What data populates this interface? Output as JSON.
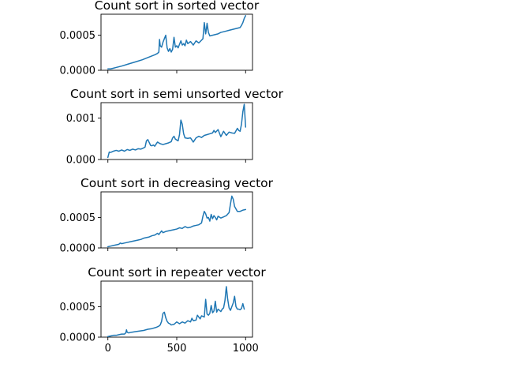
{
  "chart_data": [
    {
      "type": "line",
      "title": "Count sort in sorted vector",
      "xlim": [
        -50,
        1050
      ],
      "ylim": [
        0,
        0.0008
      ],
      "x_ticks": [
        0,
        500,
        1000
      ],
      "x_tick_labels": [
        "",
        "",
        ""
      ],
      "y_ticks": [
        0,
        0.0005
      ],
      "y_tick_labels": [
        "0.0000",
        "0.0005"
      ],
      "series": [
        {
          "color": "#1f77b4",
          "x": [
            0,
            20,
            40,
            60,
            80,
            100,
            150,
            200,
            250,
            300,
            340,
            360,
            370,
            375,
            380,
            390,
            400,
            410,
            420,
            430,
            440,
            450,
            460,
            470,
            480,
            490,
            500,
            510,
            520,
            530,
            540,
            550,
            560,
            570,
            580,
            600,
            620,
            640,
            660,
            680,
            690,
            700,
            710,
            715,
            720,
            730,
            740,
            760,
            780,
            800,
            820,
            840,
            860,
            880,
            900,
            920,
            940,
            960,
            970,
            980,
            990,
            1000
          ],
          "y": [
            2e-05,
            2e-05,
            3e-05,
            4e-05,
            5e-05,
            6e-05,
            9e-05,
            0.00012,
            0.00015,
            0.00019,
            0.00022,
            0.00024,
            0.00026,
            0.00044,
            0.00035,
            0.00033,
            0.0004,
            0.00045,
            0.0005,
            0.00032,
            0.00027,
            0.00031,
            0.00026,
            0.0003,
            0.00047,
            0.00033,
            0.00035,
            0.00032,
            0.00037,
            0.00042,
            0.00036,
            0.00038,
            0.00035,
            0.00043,
            0.00038,
            0.00041,
            0.00036,
            0.00042,
            0.00039,
            0.00043,
            0.00045,
            0.00068,
            0.00052,
            0.00058,
            0.00067,
            0.00054,
            0.00049,
            0.0005,
            0.00051,
            0.00052,
            0.00054,
            0.00055,
            0.00056,
            0.00057,
            0.00058,
            0.00059,
            0.0006,
            0.00061,
            0.00064,
            0.00068,
            0.00074,
            0.00078
          ]
        }
      ]
    },
    {
      "type": "line",
      "title": "Count sort in semi unsorted vector",
      "xlim": [
        -50,
        1050
      ],
      "ylim": [
        0,
        0.00137
      ],
      "x_ticks": [
        0,
        500,
        1000
      ],
      "x_tick_labels": [
        "",
        "",
        ""
      ],
      "y_ticks": [
        0,
        0.001
      ],
      "y_tick_labels": [
        "0.000",
        "0.001"
      ],
      "series": [
        {
          "color": "#1f77b4",
          "x": [
            0,
            10,
            20,
            40,
            60,
            80,
            100,
            120,
            140,
            160,
            180,
            200,
            220,
            240,
            260,
            270,
            280,
            290,
            300,
            310,
            320,
            330,
            340,
            360,
            380,
            400,
            420,
            440,
            460,
            470,
            480,
            490,
            500,
            510,
            520,
            530,
            540,
            550,
            560,
            580,
            600,
            620,
            640,
            650,
            660,
            680,
            700,
            720,
            740,
            760,
            770,
            780,
            800,
            820,
            840,
            860,
            880,
            900,
            920,
            940,
            950,
            960,
            970,
            980,
            990,
            1000
          ],
          "y": [
            5e-05,
            0.00018,
            0.00017,
            0.0002,
            0.00022,
            0.0002,
            0.00023,
            0.0002,
            0.00024,
            0.00022,
            0.00025,
            0.00023,
            0.00026,
            0.00025,
            0.00028,
            0.0003,
            0.00045,
            0.00048,
            0.00041,
            0.00034,
            0.00033,
            0.00035,
            0.00032,
            0.00042,
            0.00038,
            0.00036,
            0.00038,
            0.0004,
            0.00043,
            0.00052,
            0.00056,
            0.00049,
            0.00047,
            0.00045,
            0.0006,
            0.00095,
            0.00085,
            0.00062,
            0.00052,
            0.00051,
            0.00052,
            0.00042,
            0.00052,
            0.00054,
            0.00056,
            0.00053,
            0.00058,
            0.0006,
            0.00062,
            0.00064,
            0.0007,
            0.00065,
            0.00072,
            0.00055,
            0.00068,
            0.00058,
            0.00066,
            0.00064,
            0.00063,
            0.00075,
            0.0007,
            0.00068,
            0.00085,
            0.00115,
            0.00133,
            0.00078
          ]
        }
      ]
    },
    {
      "type": "line",
      "title": "Count sort in decreasing vector",
      "xlim": [
        -50,
        1050
      ],
      "ylim": [
        0,
        0.00092
      ],
      "x_ticks": [
        0,
        500,
        1000
      ],
      "x_tick_labels": [
        "",
        "",
        ""
      ],
      "y_ticks": [
        0,
        0.0005
      ],
      "y_tick_labels": [
        "0.0000",
        "0.0005"
      ],
      "series": [
        {
          "color": "#1f77b4",
          "x": [
            0,
            20,
            40,
            60,
            80,
            90,
            100,
            120,
            140,
            160,
            180,
            200,
            220,
            240,
            260,
            280,
            300,
            320,
            340,
            360,
            370,
            380,
            390,
            400,
            410,
            420,
            440,
            460,
            480,
            500,
            520,
            540,
            560,
            580,
            600,
            620,
            640,
            660,
            680,
            690,
            700,
            710,
            720,
            730,
            740,
            750,
            760,
            770,
            780,
            790,
            800,
            820,
            840,
            860,
            880,
            890,
            900,
            910,
            920,
            940,
            960,
            980,
            1000
          ],
          "y": [
            2e-05,
            3e-05,
            4e-05,
            5e-05,
            6e-05,
            8e-05,
            7e-05,
            8e-05,
            9e-05,
            0.0001,
            0.00011,
            0.00012,
            0.00013,
            0.00014,
            0.00016,
            0.00017,
            0.00018,
            0.0002,
            0.00021,
            0.00024,
            0.00022,
            0.00025,
            0.00028,
            0.00025,
            0.00026,
            0.00027,
            0.00028,
            0.00029,
            0.0003,
            0.00031,
            0.00033,
            0.00032,
            0.00035,
            0.00033,
            0.00034,
            0.00036,
            0.00037,
            0.00038,
            0.00041,
            0.00052,
            0.0006,
            0.00056,
            0.00049,
            0.0005,
            0.00044,
            0.00055,
            0.00048,
            0.00053,
            0.0005,
            0.00046,
            0.00052,
            0.00049,
            0.00051,
            0.00053,
            0.00058,
            0.00072,
            0.00085,
            0.0008,
            0.00068,
            0.0006,
            0.0006,
            0.00062,
            0.00063
          ]
        }
      ]
    },
    {
      "type": "line",
      "title": "Count sort in repeater vector",
      "xlim": [
        -50,
        1050
      ],
      "ylim": [
        0,
        0.00092
      ],
      "x_ticks": [
        0,
        500,
        1000
      ],
      "x_tick_labels": [
        "0",
        "500",
        "1000"
      ],
      "y_ticks": [
        0,
        0.0005
      ],
      "y_tick_labels": [
        "0.0000",
        "0.0005"
      ],
      "series": [
        {
          "color": "#1f77b4",
          "x": [
            0,
            20,
            40,
            60,
            80,
            100,
            120,
            130,
            135,
            140,
            150,
            170,
            200,
            230,
            260,
            290,
            320,
            350,
            370,
            380,
            390,
            400,
            410,
            420,
            430,
            440,
            450,
            460,
            480,
            500,
            520,
            540,
            560,
            580,
            600,
            610,
            620,
            640,
            650,
            660,
            670,
            680,
            700,
            710,
            720,
            730,
            740,
            750,
            760,
            770,
            780,
            790,
            800,
            820,
            830,
            840,
            850,
            860,
            870,
            880,
            890,
            900,
            910,
            920,
            930,
            940,
            950,
            960,
            970,
            980,
            990
          ],
          "y": [
            1e-05,
            2e-05,
            3e-05,
            3e-05,
            4e-05,
            5e-05,
            5e-05,
            7e-05,
            0.00012,
            8e-05,
            7e-05,
            8e-05,
            9e-05,
            0.0001,
            0.00011,
            0.00013,
            0.00014,
            0.00016,
            0.00018,
            0.0002,
            0.00026,
            0.00039,
            0.00041,
            0.00032,
            0.00026,
            0.00023,
            0.00022,
            0.0002,
            0.00021,
            0.00025,
            0.00022,
            0.00025,
            0.00023,
            0.00027,
            0.00025,
            0.00031,
            0.00027,
            0.00028,
            0.00036,
            0.00033,
            0.0003,
            0.00035,
            0.00033,
            0.00062,
            0.00038,
            0.00036,
            0.00039,
            0.00052,
            0.0004,
            0.00043,
            0.00059,
            0.00041,
            0.00046,
            0.00042,
            0.00046,
            0.00048,
            0.0006,
            0.00083,
            0.00062,
            0.00048,
            0.00044,
            0.0005,
            0.00056,
            0.00067,
            0.0005,
            0.00046,
            0.00046,
            0.00045,
            0.00047,
            0.00055,
            0.00046
          ]
        }
      ]
    }
  ]
}
